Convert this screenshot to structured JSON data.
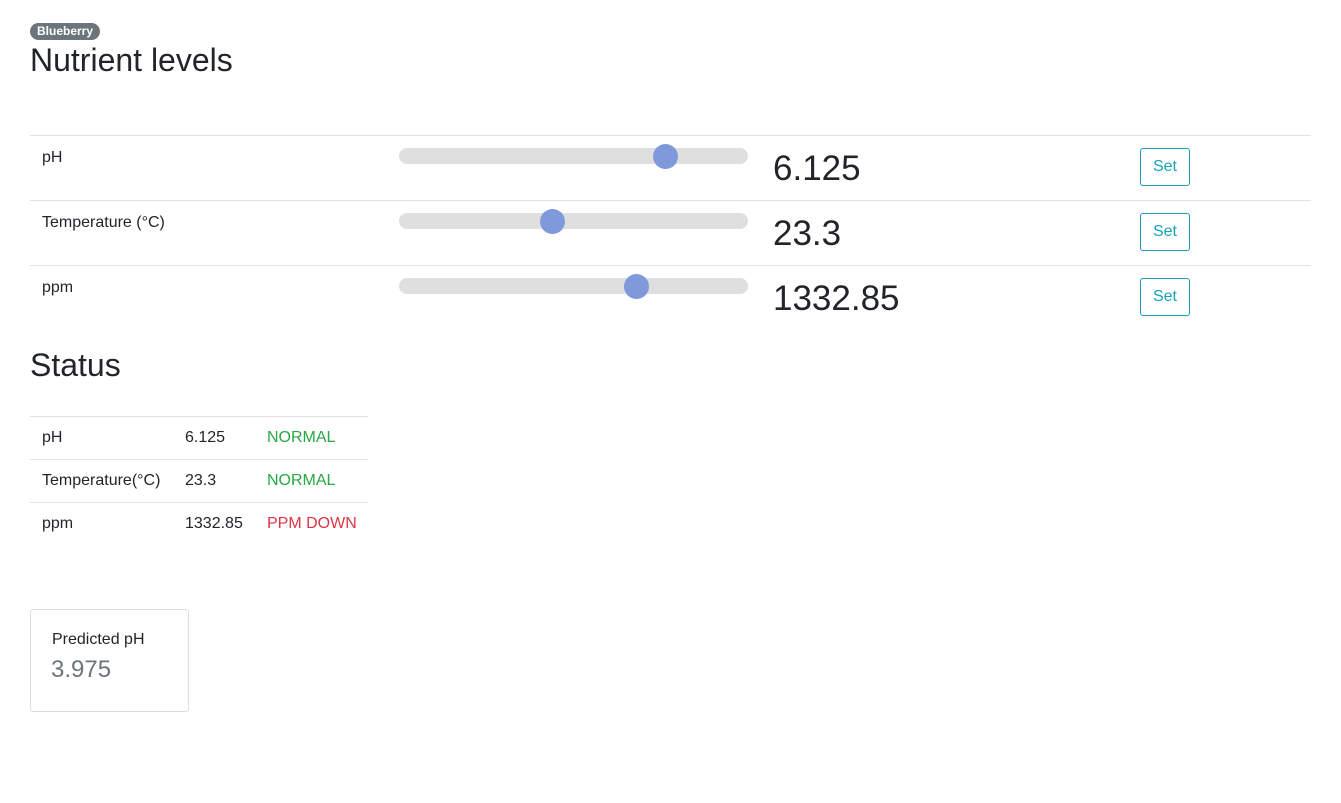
{
  "header": {
    "badge": "Blueberry",
    "title": "Nutrient levels"
  },
  "levels": [
    {
      "label": "pH",
      "value": "6.125",
      "slider_fraction": 0.763,
      "button": "Set"
    },
    {
      "label": "Temperature (°C)",
      "value": "23.3",
      "slider_fraction": 0.439,
      "button": "Set"
    },
    {
      "label": "ppm",
      "value": "1332.85",
      "slider_fraction": 0.68,
      "button": "Set"
    }
  ],
  "status": {
    "title": "Status",
    "rows": [
      {
        "name": "pH",
        "value": "6.125",
        "state": "NORMAL",
        "state_color": "#28a745"
      },
      {
        "name": "Temperature(°C)",
        "value": "23.3",
        "state": "NORMAL",
        "state_color": "#28a745"
      },
      {
        "name": "ppm",
        "value": "1332.85",
        "state": "PPM DOWN",
        "state_color": "#dc3545"
      }
    ]
  },
  "prediction": {
    "title": "Predicted pH",
    "value": "3.975"
  },
  "colors": {
    "accent": "#17a2b8",
    "slider_thumb": "#7f99db",
    "slider_track": "#dfdfdf",
    "badge": "#6c757d"
  }
}
